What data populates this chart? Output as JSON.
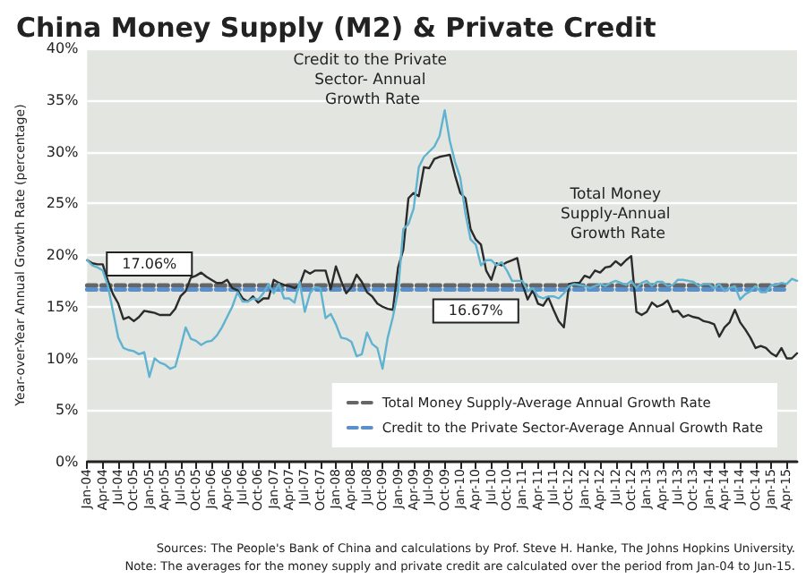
{
  "chart_data": {
    "type": "line",
    "title": "China Money Supply (M2) & Private Credit",
    "ylabel": "Year-over-Year Annual Growth Rate (percentage)",
    "categories": [
      "Jan-04",
      null,
      null,
      "Apr-04",
      null,
      null,
      "Jul-04",
      null,
      null,
      "Oct-05",
      null,
      null,
      "Jan-05",
      null,
      null,
      "Apr-05",
      null,
      null,
      "Jul-05",
      null,
      null,
      "Oct-05",
      null,
      null,
      "Jan-06",
      null,
      null,
      "Apr-06",
      null,
      null,
      "Jul-06",
      null,
      null,
      "Oct-06",
      null,
      null,
      "Jan-07",
      null,
      null,
      "Apr-07",
      null,
      null,
      "Jul-07",
      null,
      null,
      "Oct-07",
      null,
      null,
      "Jan-08",
      null,
      null,
      "Apr-08",
      null,
      null,
      "Jul-08",
      null,
      null,
      "Oct-09",
      null,
      null,
      "Jan-09",
      null,
      null,
      "Apr-09",
      null,
      null,
      "Jul-09",
      null,
      null,
      "Oct-09",
      null,
      null,
      "Jan-10",
      null,
      null,
      "Apr-10",
      null,
      null,
      "Jul-10",
      null,
      null,
      "Oct-10",
      null,
      null,
      "Jan-11",
      null,
      null,
      "Apr-11",
      null,
      null,
      "Jul-11",
      null,
      null,
      "Oct-12",
      null,
      null,
      "Jan-12",
      null,
      null,
      "Apr-12",
      null,
      null,
      "Jul-12",
      null,
      null,
      "Oct-12",
      null,
      null,
      "Jan-13",
      null,
      null,
      "Apr-13",
      null,
      null,
      "Jul-13",
      null,
      null,
      "Oct-13",
      null,
      null,
      "Jan-14",
      null,
      null,
      "Apr-14",
      null,
      null,
      "Jul-14",
      null,
      null,
      "Oct-14",
      null,
      null,
      "Jan-15",
      null,
      null,
      "Apr-15",
      null,
      null
    ],
    "series": [
      {
        "color": "#2b2b2b",
        "values": [
          19.5,
          19.2,
          19.1,
          19.1,
          17.5,
          16.2,
          15.3,
          13.8,
          14.0,
          13.6,
          14.0,
          14.6,
          14.5,
          14.4,
          14.2,
          14.2,
          14.2,
          14.8,
          16.0,
          16.5,
          17.8,
          18.0,
          18.3,
          17.9,
          17.6,
          17.3,
          17.3,
          17.6,
          16.8,
          16.6,
          15.8,
          15.5,
          16.0,
          15.4,
          15.8,
          15.8,
          17.6,
          17.3,
          17.1,
          17.0,
          16.8,
          17.1,
          18.5,
          18.2,
          18.5,
          18.5,
          18.5,
          16.7,
          18.9,
          17.5,
          16.3,
          16.9,
          18.1,
          17.4,
          16.4,
          16.0,
          15.3,
          15.0,
          14.8,
          14.7,
          18.8,
          20.5,
          25.5,
          26.0,
          25.7,
          28.5,
          28.4,
          29.3,
          29.5,
          29.6,
          29.7,
          27.7,
          26.0,
          25.5,
          22.5,
          21.5,
          21.0,
          18.5,
          17.6,
          19.2,
          19.0,
          19.3,
          19.5,
          19.7,
          17.2,
          15.7,
          16.6,
          15.3,
          15.1,
          15.9,
          14.7,
          13.6,
          13.0,
          17.2,
          17.3,
          17.3,
          18.0,
          17.8,
          18.5,
          18.3,
          18.8,
          18.9,
          19.4,
          19.0,
          19.5,
          19.9,
          14.5,
          14.2,
          14.5,
          15.4,
          15.0,
          15.2,
          15.6,
          14.5,
          14.6,
          14.0,
          14.2,
          14.0,
          13.9,
          13.6,
          13.5,
          13.3,
          12.1,
          13.0,
          13.5,
          14.7,
          13.5,
          12.8,
          12.0,
          11.0,
          11.2,
          11.0,
          10.5,
          10.2,
          11.0,
          10.0,
          10.0,
          10.5
        ]
      },
      {
        "color": "#5fb3d0",
        "values": [
          19.5,
          19.0,
          18.8,
          18.5,
          17.0,
          14.5,
          12.0,
          11.0,
          10.8,
          10.7,
          10.4,
          10.6,
          8.2,
          10.0,
          9.6,
          9.4,
          9.0,
          9.2,
          11.0,
          13.0,
          11.9,
          11.7,
          11.3,
          11.6,
          11.7,
          12.2,
          13.0,
          14.0,
          15.0,
          16.4,
          15.5,
          15.5,
          15.8,
          15.7,
          16.3,
          17.2,
          16.3,
          17.2,
          15.8,
          15.8,
          15.4,
          17.4,
          14.5,
          16.3,
          16.9,
          16.8,
          13.9,
          14.3,
          13.3,
          12.0,
          11.9,
          11.6,
          10.2,
          10.4,
          12.5,
          11.4,
          11.0,
          9.0,
          12.0,
          14.0,
          16.5,
          22.5,
          23.0,
          24.5,
          28.5,
          29.5,
          30.0,
          30.5,
          31.5,
          34.0,
          31.0,
          29.0,
          27.5,
          24.0,
          21.5,
          21.0,
          19.0,
          19.5,
          19.5,
          19.0,
          19.3,
          18.5,
          17.5,
          17.5,
          17.5,
          16.5,
          16.8,
          16.0,
          15.8,
          16.0,
          16.0,
          15.8,
          16.3,
          17.0,
          17.2,
          17.1,
          17.0,
          16.8,
          17.0,
          17.2,
          17.0,
          17.3,
          17.5,
          17.3,
          17.1,
          17.5,
          16.8,
          17.3,
          17.5,
          17.0,
          17.4,
          17.4,
          17.0,
          17.1,
          17.6,
          17.6,
          17.5,
          17.4,
          17.0,
          17.2,
          17.2,
          16.8,
          17.2,
          16.5,
          16.8,
          17.0,
          15.7,
          16.2,
          16.5,
          17.0,
          16.4,
          16.4,
          17.1,
          17.1,
          17.3,
          17.2,
          17.7,
          17.5
        ]
      },
      {
        "name": "Total Money Supply-Average Annual Growth Rate",
        "color": "#666666",
        "line_style": "dashed",
        "x": [
          "Jan-04",
          "Jan-05",
          "Apr-15"
        ],
        "values": [
          17.06,
          17.06,
          17.06
        ],
        "value_labels": [
          null,
          "17.06%",
          null
        ]
      },
      {
        "name": "Credit to the Private Sector-Average Annual Growth Rate",
        "color": "#5b8fc9",
        "line_style": "dashed",
        "x": [
          "Jan-04",
          "Apr-10",
          "Apr-15"
        ],
        "values": [
          16.67,
          16.67,
          16.67
        ],
        "value_labels": [
          null,
          "16.67%",
          null
        ]
      }
    ],
    "ylim": [
      0,
      40
    ],
    "yticks": [
      {
        "value": 0,
        "label": "0%"
      },
      {
        "value": 5,
        "label": "5%"
      },
      {
        "value": 10,
        "label": "10%"
      },
      {
        "value": 15,
        "label": "15%"
      },
      {
        "value": 20,
        "label": "20%"
      },
      {
        "value": 25,
        "label": "25%"
      },
      {
        "value": 30,
        "label": "30%"
      },
      {
        "value": 35,
        "label": "35%"
      },
      {
        "value": 40,
        "label": "40%"
      }
    ],
    "grid": "y",
    "legend": "bottom right",
    "marker": "none",
    "annotations": [
      "Credit to the Private Sector- Annual Growth Rate",
      "Total Money Supply-Annual Growth Rate",
      "Sources: The People's Bank of China and calculations by Prof. Steve H. Hanke, The Johns Hopkins University.",
      "Note: The averages for the money supply and private credit are calculated over the period from Jan-04 to Jun-15."
    ]
  }
}
